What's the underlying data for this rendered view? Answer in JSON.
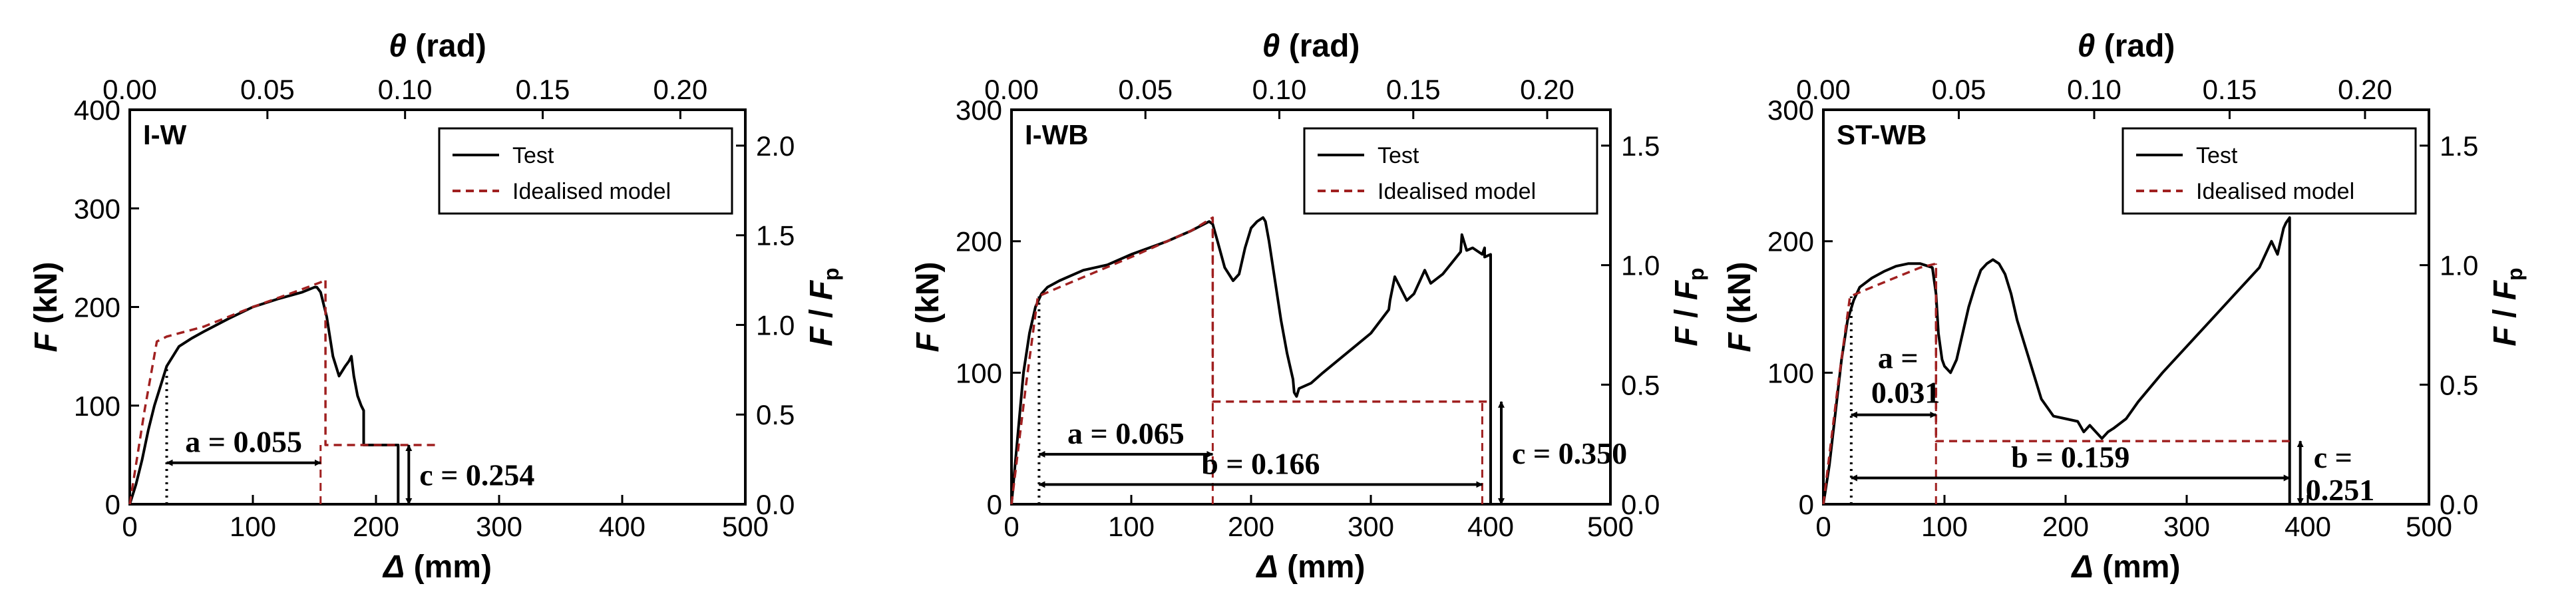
{
  "chart_data": [
    {
      "type": "line",
      "panel_label": "I-W",
      "xlabel": "Δ (mm)",
      "ylabel": "F (kN)",
      "top_xlabel": "θ (rad)",
      "right_ylabel": "F / Fp",
      "xlim": [
        0,
        500
      ],
      "ylim": [
        0,
        400
      ],
      "xticks": [
        0,
        100,
        200,
        300,
        400,
        500
      ],
      "yticks": [
        0,
        100,
        200,
        300,
        400
      ],
      "top_xlim": [
        0,
        0.2236
      ],
      "top_xticks": [
        "0.00",
        "0.05",
        "0.10",
        "0.15",
        "0.20"
      ],
      "top_xtick_values": [
        0.0,
        0.05,
        0.1,
        0.15,
        0.2
      ],
      "right_ylim": [
        0,
        2.2
      ],
      "right_yticks": [
        "0.0",
        "0.5",
        "1.0",
        "1.5",
        "2.0"
      ],
      "right_ytick_values": [
        0.0,
        0.5,
        1.0,
        1.5,
        2.0
      ],
      "legend": [
        "Test",
        "Idealised model"
      ],
      "series": [
        {
          "name": "Test",
          "x": [
            0,
            5,
            10,
            15,
            20,
            25,
            30,
            40,
            50,
            60,
            80,
            100,
            120,
            140,
            150,
            152,
            155,
            160,
            165,
            170,
            175,
            178,
            180,
            182,
            185,
            188,
            190,
            190,
            200,
            210,
            215,
            218,
            218
          ],
          "y": [
            0,
            20,
            45,
            75,
            100,
            120,
            140,
            160,
            168,
            175,
            188,
            200,
            208,
            215,
            220,
            220,
            215,
            190,
            150,
            130,
            140,
            145,
            150,
            130,
            110,
            100,
            95,
            60,
            60,
            60,
            60,
            60,
            0
          ]
        },
        {
          "name": "Idealised model",
          "x": [
            0,
            12,
            22,
            30,
            60,
            100,
            140,
            155,
            159,
            159,
            220,
            250
          ],
          "y": [
            0,
            95,
            165,
            170,
            180,
            200,
            218,
            225,
            228,
            60,
            60,
            60
          ]
        }
      ],
      "guides": [
        {
          "type": "vline",
          "x": 30,
          "y": [
            0,
            140
          ]
        },
        {
          "type": "vline",
          "x": 155,
          "y": [
            0,
            60
          ]
        }
      ],
      "annotations": [
        {
          "text": "a = 0.055",
          "from": 30,
          "to": 155,
          "y": 42
        },
        {
          "text": "c = 0.254",
          "x": 218,
          "y_range": [
            0,
            60
          ]
        }
      ]
    },
    {
      "type": "line",
      "panel_label": "I-WB",
      "xlabel": "Δ (mm)",
      "ylabel": "F (kN)",
      "top_xlabel": "θ (rad)",
      "right_ylabel": "F / Fp",
      "xlim": [
        0,
        500
      ],
      "ylim": [
        0,
        300
      ],
      "xticks": [
        0,
        100,
        200,
        300,
        400,
        500
      ],
      "yticks": [
        0,
        100,
        200,
        300
      ],
      "top_xlim": [
        0,
        0.2236
      ],
      "top_xticks": [
        "0.00",
        "0.05",
        "0.10",
        "0.15",
        "0.20"
      ],
      "top_xtick_values": [
        0.0,
        0.05,
        0.1,
        0.15,
        0.2
      ],
      "right_ylim": [
        0,
        1.65
      ],
      "right_yticks": [
        "0.0",
        "0.5",
        "1.0",
        "1.5"
      ],
      "right_ytick_values": [
        0.0,
        0.5,
        1.0,
        1.5
      ],
      "legend": [
        "Test",
        "Idealised model"
      ],
      "series": [
        {
          "name": "Test",
          "x": [
            0,
            5,
            10,
            15,
            20,
            25,
            30,
            40,
            60,
            80,
            100,
            130,
            150,
            165,
            168,
            172,
            178,
            185,
            190,
            195,
            200,
            205,
            210,
            212,
            215,
            220,
            225,
            230,
            235,
            236,
            238,
            240,
            250,
            260,
            280,
            300,
            315,
            316,
            320,
            330,
            336,
            340,
            345,
            350,
            360,
            375,
            376,
            380,
            385,
            393,
            395,
            395,
            400,
            400
          ],
          "y": [
            0,
            50,
            100,
            130,
            150,
            160,
            165,
            170,
            178,
            182,
            190,
            200,
            208,
            215,
            213,
            200,
            180,
            170,
            175,
            195,
            210,
            215,
            218,
            215,
            200,
            170,
            140,
            115,
            95,
            85,
            82,
            88,
            92,
            100,
            115,
            130,
            148,
            155,
            173,
            155,
            160,
            168,
            178,
            168,
            175,
            192,
            205,
            193,
            195,
            190,
            195,
            188,
            190,
            0
          ]
        },
        {
          "name": "Idealised model",
          "x": [
            0,
            12,
            22,
            40,
            100,
            150,
            168,
            168,
            400
          ],
          "y": [
            0,
            90,
            158,
            165,
            188,
            208,
            218,
            78,
            78
          ]
        }
      ],
      "guides": [
        {
          "type": "vline",
          "x": 23,
          "y": [
            0,
            158
          ]
        },
        {
          "type": "vline",
          "x": 168,
          "y": [
            0,
            218
          ]
        },
        {
          "type": "vline",
          "x": 393,
          "y": [
            0,
            78
          ]
        }
      ],
      "annotations": [
        {
          "text": "a = 0.065",
          "from": 23,
          "to": 168,
          "y": 38
        },
        {
          "text": "b = 0.166",
          "from": 23,
          "to": 393,
          "y": 15
        },
        {
          "text": "c = 0.350",
          "x": 400,
          "y_range": [
            0,
            78
          ]
        }
      ]
    },
    {
      "type": "line",
      "panel_label": "ST-WB",
      "xlabel": "Δ (mm)",
      "ylabel": "F (kN)",
      "top_xlabel": "θ (rad)",
      "right_ylabel": "F / Fp",
      "xlim": [
        0,
        500
      ],
      "ylim": [
        0,
        300
      ],
      "xticks": [
        0,
        100,
        200,
        300,
        400,
        500
      ],
      "yticks": [
        0,
        100,
        200,
        300
      ],
      "top_xlim": [
        0,
        0.2236
      ],
      "top_xticks": [
        "0.00",
        "0.05",
        "0.10",
        "0.15",
        "0.20"
      ],
      "top_xtick_values": [
        0.0,
        0.05,
        0.1,
        0.15,
        0.2
      ],
      "right_ylim": [
        0,
        1.65
      ],
      "right_yticks": [
        "0.0",
        "0.5",
        "1.0",
        "1.5"
      ],
      "right_ytick_values": [
        0.0,
        0.5,
        1.0,
        1.5
      ],
      "legend": [
        "Test",
        "Idealised model"
      ],
      "series": [
        {
          "name": "Test",
          "x": [
            0,
            5,
            10,
            15,
            20,
            25,
            30,
            40,
            50,
            60,
            70,
            80,
            90,
            93,
            95,
            98,
            100,
            105,
            110,
            115,
            120,
            125,
            130,
            135,
            140,
            145,
            150,
            155,
            160,
            170,
            180,
            190,
            200,
            210,
            215,
            220,
            225,
            230,
            235,
            240,
            250,
            260,
            280,
            300,
            320,
            340,
            350,
            360,
            365,
            370,
            375,
            380,
            382,
            385,
            385
          ],
          "y": [
            0,
            30,
            70,
            110,
            140,
            155,
            165,
            172,
            177,
            181,
            183,
            183,
            180,
            160,
            130,
            110,
            105,
            100,
            110,
            130,
            150,
            165,
            178,
            183,
            186,
            183,
            175,
            160,
            140,
            110,
            80,
            67,
            65,
            63,
            55,
            60,
            55,
            50,
            55,
            58,
            65,
            78,
            100,
            120,
            140,
            160,
            170,
            180,
            190,
            200,
            190,
            210,
            214,
            218,
            0
          ]
        },
        {
          "name": "Idealised model",
          "x": [
            0,
            12,
            22,
            40,
            80,
            93,
            93,
            385
          ],
          "y": [
            0,
            90,
            158,
            165,
            180,
            183,
            48,
            48
          ]
        }
      ],
      "guides": [
        {
          "type": "vline",
          "x": 23,
          "y": [
            0,
            158
          ]
        },
        {
          "type": "vline",
          "x": 93,
          "y": [
            0,
            183
          ]
        }
      ],
      "annotations": [
        {
          "text": "a =",
          "text2": "0.031",
          "from": 23,
          "to": 93,
          "y": 68
        },
        {
          "text": "b = 0.159",
          "from": 23,
          "to": 385,
          "y": 20
        },
        {
          "text": "c =",
          "text2": "0.251",
          "x": 385,
          "y_range": [
            0,
            48
          ]
        }
      ]
    }
  ]
}
